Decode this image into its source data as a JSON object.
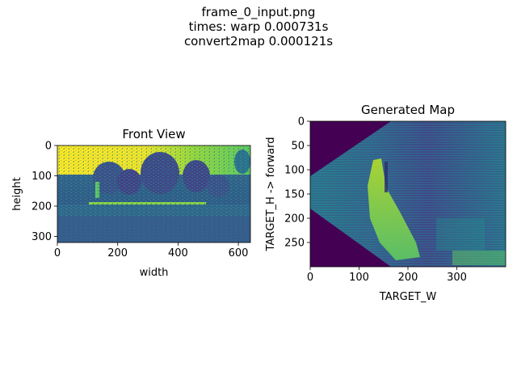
{
  "figure": {
    "suptitle_lines": [
      "frame_0_input.png",
      "times: warp 0.000731s",
      "convert2map 0.000121s"
    ]
  },
  "colors": {
    "viridis_dark": "#440154",
    "viridis_blue": "#3b528b",
    "viridis_teal": "#21918c",
    "viridis_green": "#5ec962",
    "viridis_yellow": "#fde725"
  },
  "chart_data": [
    {
      "type": "heatmap",
      "title": "Front View",
      "xlabel": "width",
      "ylabel": "height",
      "xticks": [
        0,
        200,
        400,
        600
      ],
      "yticks": [
        0,
        100,
        200,
        300
      ],
      "xlim": [
        0,
        640
      ],
      "ylim": [
        320,
        0
      ],
      "colormap": "viridis"
    },
    {
      "type": "heatmap",
      "title": "Generated Map",
      "xlabel": "TARGET_W",
      "ylabel": "TARGET_H -> forward",
      "xticks": [
        0,
        100,
        200,
        300
      ],
      "yticks": [
        0,
        50,
        100,
        150,
        200,
        250
      ],
      "xlim": [
        0,
        400
      ],
      "ylim": [
        300,
        0
      ],
      "colormap": "viridis"
    }
  ]
}
